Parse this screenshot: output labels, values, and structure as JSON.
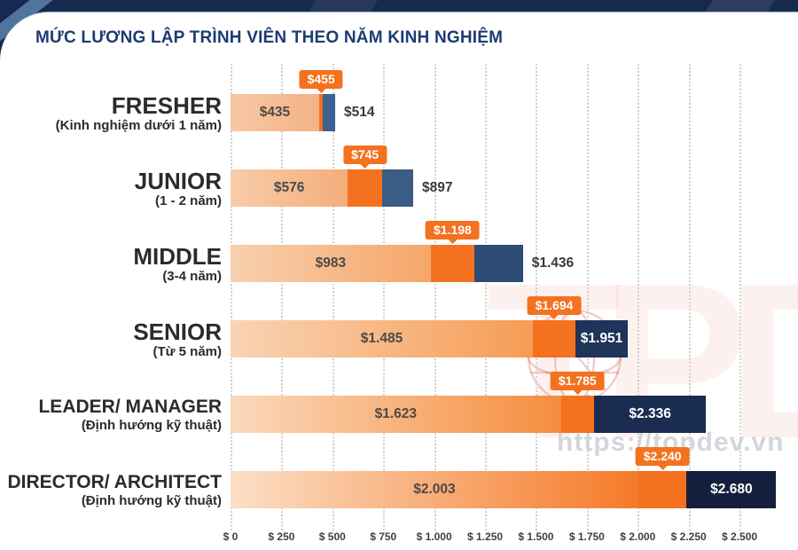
{
  "header": {
    "title": "MỨC LƯƠNG LẬP TRÌNH VIÊN THEO NĂM KINH NGHIỆM",
    "title_color": "#1b3c74",
    "topbar_color": "#16294e"
  },
  "watermark": {
    "letters": [
      "T",
      "P",
      "D"
    ],
    "url": "https://topdev.vn",
    "globe_icon": "wireframe-globe"
  },
  "chart_data": {
    "type": "bar",
    "orientation": "horizontal",
    "title": "MỨC LƯƠNG LẬP TRÌNH VIÊN THEO NĂM KINH NGHIỆM",
    "xlim": [
      0,
      2700
    ],
    "grid": "dotted-vertical",
    "x_tick_values": [
      0,
      250,
      500,
      750,
      1000,
      1250,
      1500,
      1750,
      2000,
      2250,
      2500
    ],
    "x_tick_labels": [
      "$ 0",
      "$ 250",
      "$ 500",
      "$ 750",
      "$ 1.000",
      "$ 1.250",
      "$ 1.500",
      "$ 1.750",
      "$ 2.000",
      "$ 2.250",
      "$ 2.500"
    ],
    "rows": [
      {
        "level": "FRESHER",
        "experience": "(Kinh nghiệm dưới 1 năm)",
        "low": 435,
        "mid": 455,
        "high": 514,
        "low_label": "$435",
        "mid_label": "$455",
        "high_label": "$514",
        "bar_gradient": [
          "#f7c8a4",
          "#f3b286"
        ],
        "high_color": "#3d6191"
      },
      {
        "level": "JUNIOR",
        "experience": "(1 - 2 năm)",
        "low": 576,
        "mid": 745,
        "high": 897,
        "low_label": "$576",
        "mid_label": "$745",
        "high_label": "$897",
        "bar_gradient": [
          "#f8cca9",
          "#f4ad7a"
        ],
        "high_color": "#3a5c85"
      },
      {
        "level": "MIDDLE",
        "experience": "(3-4 năm)",
        "low": 983,
        "mid": 1198,
        "high": 1436,
        "low_label": "$983",
        "mid_label": "$1.198",
        "high_label": "$1.436",
        "bar_gradient": [
          "#f8d0af",
          "#f5a668"
        ],
        "high_color": "#2c4b75"
      },
      {
        "level": "SENIOR",
        "experience": "(Từ 5 năm)",
        "low": 1485,
        "mid": 1694,
        "high": 1951,
        "low_label": "$1.485",
        "mid_label": "$1.694",
        "high_label": "$1.951",
        "bar_gradient": [
          "#f9d4b5",
          "#f69c54"
        ],
        "high_color": "#1e3459"
      },
      {
        "level": "LEADER/ MANAGER",
        "experience": "(Định hướng kỹ thuật)",
        "low": 1623,
        "mid": 1785,
        "high": 2336,
        "low_label": "$1.623",
        "mid_label": "$1.785",
        "high_label": "$2.336",
        "bar_gradient": [
          "#fad9bc",
          "#f68d3e"
        ],
        "high_color": "#1a2c50"
      },
      {
        "level": "DIRECTOR/ ARCHITECT",
        "experience": "(Định hướng kỹ thuật)",
        "low": 2003,
        "mid": 2240,
        "high": 2680,
        "low_label": "$2.003",
        "mid_label": "$2.240",
        "high_label": "$2.680",
        "bar_gradient": [
          "#fbdfc6",
          "#f57a28"
        ],
        "high_color": "#131f3d"
      }
    ],
    "colors": {
      "median_segment": "#f4711f",
      "callout_bg": "#f4711f",
      "callout_text": "#ffffff",
      "grid": "#d0d0d0",
      "axis_text": "#3f3f3f",
      "low_label_text": "#4c4a48",
      "high_label_text": "#ffffff"
    }
  }
}
